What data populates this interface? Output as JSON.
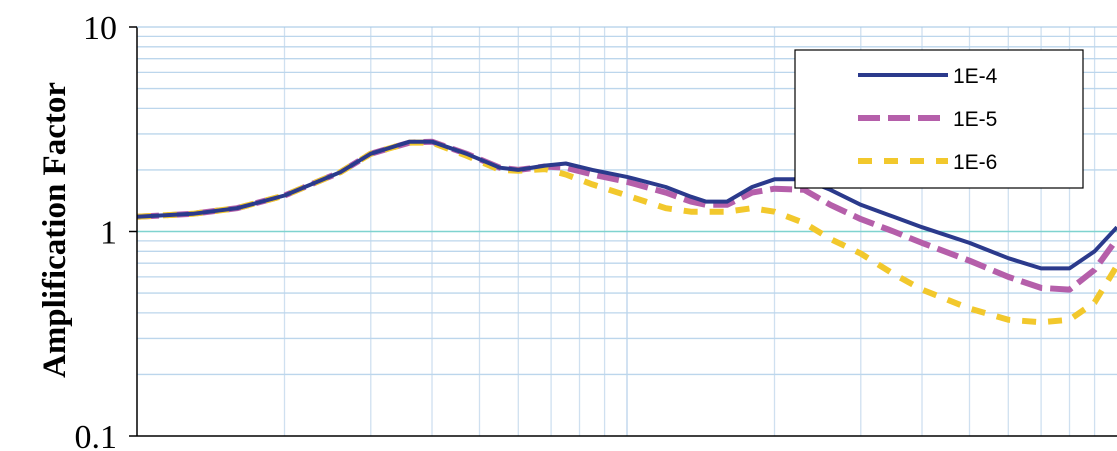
{
  "chart_data": {
    "type": "line",
    "title": "",
    "xlabel": "",
    "ylabel": "Amplification Factor",
    "y_scale": "log",
    "ylim": [
      0.1,
      10
    ],
    "yticks": [
      0.1,
      1,
      10
    ],
    "ytick_labels": [
      "0.1",
      "1",
      "10"
    ],
    "x_scale": "log",
    "xlim": [
      0.1,
      10
    ],
    "grid": true,
    "legend": {
      "placement": "top-right"
    },
    "series": [
      {
        "name": "1E-4",
        "color": "#2B3A8C",
        "dash": "solid",
        "points": [
          [
            0.1,
            1.18
          ],
          [
            0.13,
            1.22
          ],
          [
            0.16,
            1.3
          ],
          [
            0.2,
            1.5
          ],
          [
            0.26,
            1.95
          ],
          [
            0.3,
            2.4
          ],
          [
            0.36,
            2.75
          ],
          [
            0.4,
            2.75
          ],
          [
            0.47,
            2.4
          ],
          [
            0.55,
            2.05
          ],
          [
            0.6,
            2.0
          ],
          [
            0.68,
            2.1
          ],
          [
            0.75,
            2.15
          ],
          [
            0.85,
            2.0
          ],
          [
            1.0,
            1.85
          ],
          [
            1.2,
            1.65
          ],
          [
            1.35,
            1.48
          ],
          [
            1.45,
            1.4
          ],
          [
            1.6,
            1.4
          ],
          [
            1.8,
            1.65
          ],
          [
            2.0,
            1.8
          ],
          [
            2.3,
            1.8
          ],
          [
            2.6,
            1.6
          ],
          [
            3.0,
            1.35
          ],
          [
            3.5,
            1.18
          ],
          [
            4.0,
            1.05
          ],
          [
            5.0,
            0.88
          ],
          [
            6.0,
            0.74
          ],
          [
            7.0,
            0.66
          ],
          [
            8.0,
            0.66
          ],
          [
            9.0,
            0.8
          ],
          [
            10.0,
            1.05
          ]
        ]
      },
      {
        "name": "1E-5",
        "color": "#B55FAA",
        "dash": "long-dash",
        "points": [
          [
            0.1,
            1.18
          ],
          [
            0.13,
            1.22
          ],
          [
            0.16,
            1.3
          ],
          [
            0.2,
            1.5
          ],
          [
            0.26,
            1.95
          ],
          [
            0.3,
            2.4
          ],
          [
            0.36,
            2.72
          ],
          [
            0.4,
            2.75
          ],
          [
            0.47,
            2.4
          ],
          [
            0.55,
            2.05
          ],
          [
            0.6,
            2.0
          ],
          [
            0.68,
            2.08
          ],
          [
            0.75,
            2.05
          ],
          [
            0.85,
            1.9
          ],
          [
            1.0,
            1.75
          ],
          [
            1.2,
            1.55
          ],
          [
            1.35,
            1.4
          ],
          [
            1.45,
            1.35
          ],
          [
            1.6,
            1.35
          ],
          [
            1.8,
            1.55
          ],
          [
            2.0,
            1.62
          ],
          [
            2.3,
            1.6
          ],
          [
            2.6,
            1.35
          ],
          [
            3.0,
            1.15
          ],
          [
            3.5,
            1.0
          ],
          [
            4.0,
            0.88
          ],
          [
            5.0,
            0.72
          ],
          [
            6.0,
            0.6
          ],
          [
            7.0,
            0.53
          ],
          [
            8.0,
            0.52
          ],
          [
            9.0,
            0.65
          ],
          [
            10.0,
            0.92
          ]
        ]
      },
      {
        "name": "1E-6",
        "color": "#F2C82C",
        "dash": "dash",
        "points": [
          [
            0.1,
            1.18
          ],
          [
            0.13,
            1.22
          ],
          [
            0.16,
            1.3
          ],
          [
            0.2,
            1.5
          ],
          [
            0.26,
            1.95
          ],
          [
            0.3,
            2.4
          ],
          [
            0.36,
            2.72
          ],
          [
            0.4,
            2.72
          ],
          [
            0.47,
            2.35
          ],
          [
            0.55,
            2.0
          ],
          [
            0.6,
            1.98
          ],
          [
            0.68,
            2.02
          ],
          [
            0.75,
            1.9
          ],
          [
            0.85,
            1.7
          ],
          [
            1.0,
            1.5
          ],
          [
            1.2,
            1.3
          ],
          [
            1.35,
            1.25
          ],
          [
            1.45,
            1.25
          ],
          [
            1.6,
            1.25
          ],
          [
            1.8,
            1.3
          ],
          [
            2.0,
            1.25
          ],
          [
            2.3,
            1.1
          ],
          [
            2.6,
            0.92
          ],
          [
            3.0,
            0.78
          ],
          [
            3.5,
            0.62
          ],
          [
            4.0,
            0.52
          ],
          [
            5.0,
            0.42
          ],
          [
            6.0,
            0.37
          ],
          [
            7.0,
            0.36
          ],
          [
            8.0,
            0.37
          ],
          [
            9.0,
            0.45
          ],
          [
            10.0,
            0.68
          ]
        ]
      }
    ]
  }
}
